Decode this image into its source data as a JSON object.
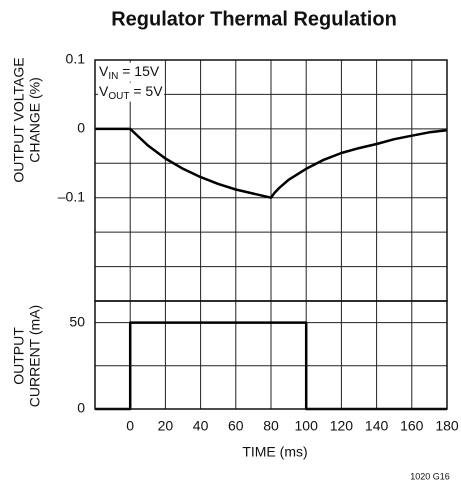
{
  "chart_data": [
    {
      "type": "line",
      "title": "Regulator Thermal Regulation",
      "ylabel": [
        "OUTPUT VOLTAGE",
        "CHANGE (%)"
      ],
      "annotations": [
        {
          "main": "V",
          "sub": "IN",
          "rest": " = 15V"
        },
        {
          "main": "V",
          "sub": "OUT",
          "rest": " = 5V"
        }
      ],
      "x": [
        -20,
        0,
        10,
        20,
        30,
        40,
        50,
        60,
        70,
        80,
        82,
        85,
        90,
        100,
        110,
        120,
        130,
        140,
        150,
        160,
        170,
        180
      ],
      "series": [
        {
          "color": "#000000",
          "values": [
            0,
            0,
            -0.024,
            -0.043,
            -0.058,
            -0.07,
            -0.08,
            -0.088,
            -0.094,
            -0.1,
            -0.093,
            -0.085,
            -0.074,
            -0.058,
            -0.045,
            -0.035,
            -0.028,
            -0.022,
            -0.015,
            -0.01,
            -0.005,
            -0.002
          ]
        }
      ],
      "xlim": [
        -20,
        180
      ],
      "ylim": [
        -0.25,
        0.1
      ],
      "yticks": [
        0.1,
        0,
        {
          "value": -0.1,
          "label": "–0.1"
        }
      ],
      "ygrid": [
        0.05,
        0,
        -0.05,
        -0.1,
        -0.15,
        -0.2
      ],
      "grid": true
    },
    {
      "type": "line",
      "ylabel": [
        "OUTPUT",
        "CURRENT (mA)"
      ],
      "xlabel": "TIME (ms)",
      "note": "1020 G16",
      "x": [
        -20,
        0,
        0,
        100,
        100,
        180
      ],
      "series": [
        {
          "color": "#000000",
          "values": [
            0,
            0,
            50,
            50,
            0,
            0
          ]
        }
      ],
      "xlim": [
        -20,
        180
      ],
      "ylim": [
        0,
        62.5
      ],
      "xticks": [
        0,
        20,
        40,
        60,
        80,
        100,
        120,
        140,
        160,
        180
      ],
      "yticks": [
        0,
        50
      ],
      "ygrid": [
        25,
        50
      ],
      "grid": true
    }
  ]
}
